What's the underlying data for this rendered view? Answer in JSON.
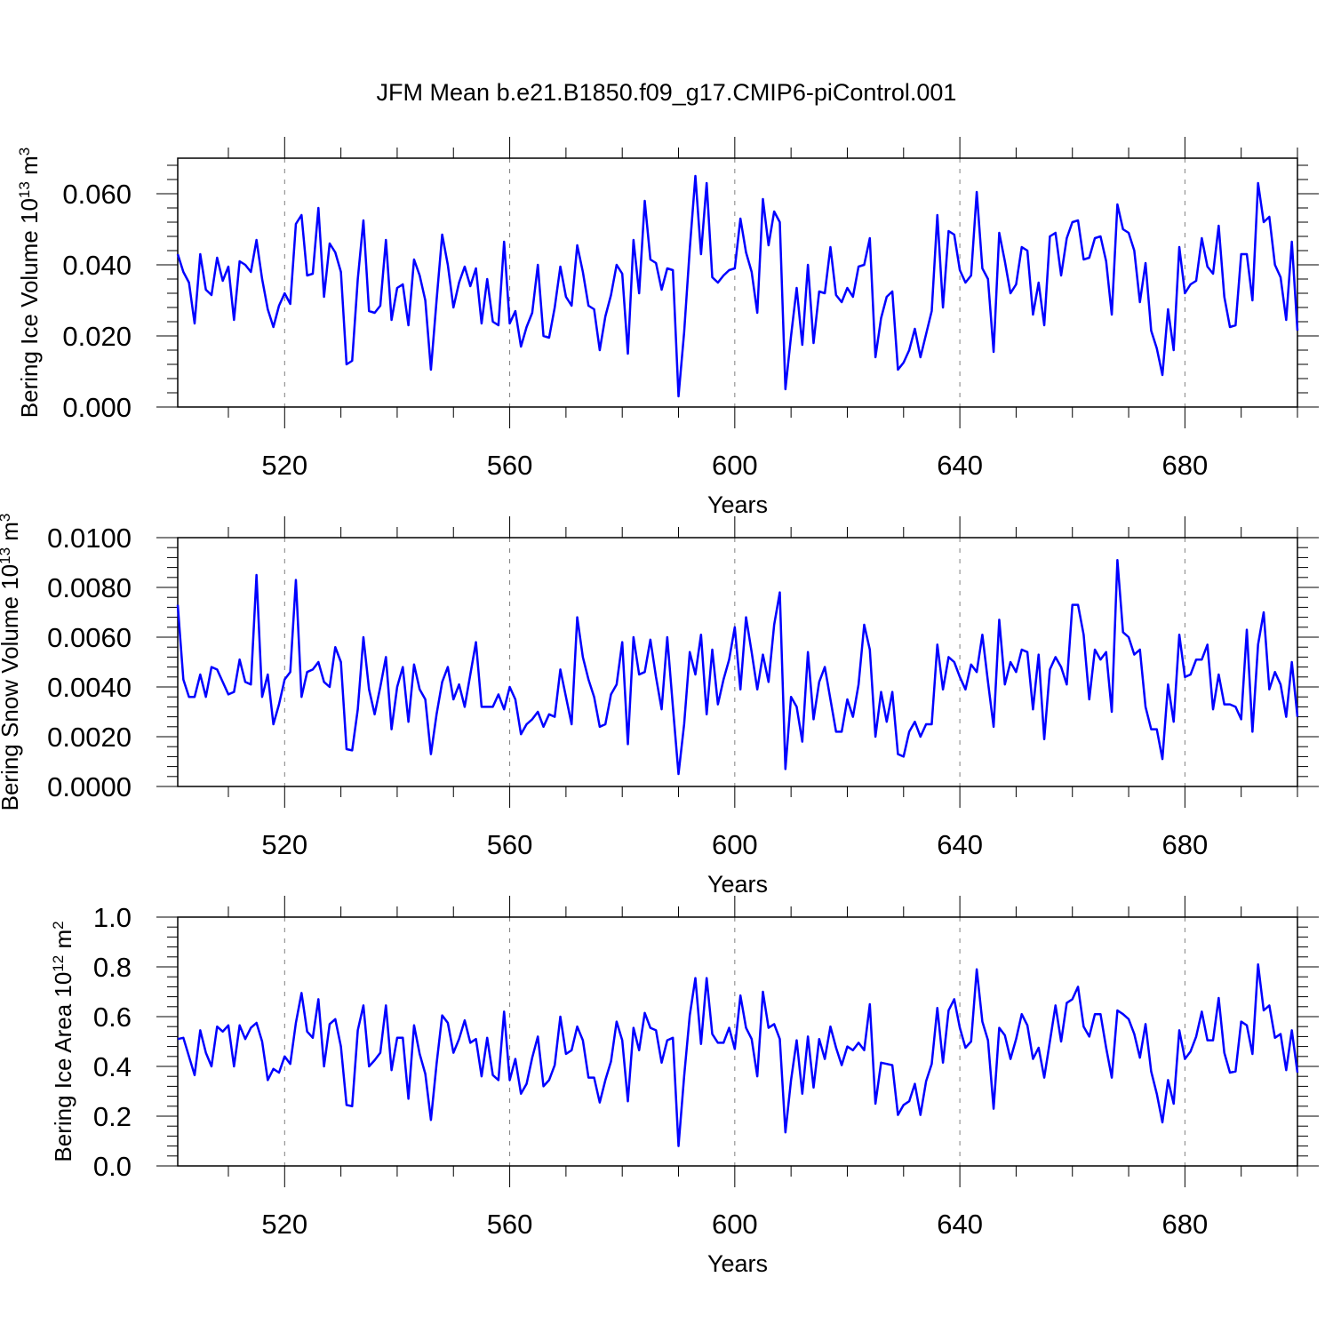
{
  "title": "JFM Mean b.e21.B1850.f09_g17.CMIP6-piControl.001",
  "line_color": "#0000ff",
  "chart_data": [
    {
      "type": "line",
      "title": "",
      "xlabel": "Years",
      "ylabel": "Bering Ice Volume 10",
      "ylabel_exp": "13",
      "ylabel_unit": " m",
      "ylabel_unit_exp": "3",
      "xlim": [
        501,
        700
      ],
      "ylim": [
        0,
        0.07
      ],
      "xticks": [
        "520",
        "560",
        "600",
        "640",
        "680"
      ],
      "yticks": [
        "0.000",
        "0.020",
        "0.040",
        "0.060"
      ],
      "grid": "vertical-dashed",
      "series": [
        {
          "values": [
            0.043,
            0.038,
            0.035,
            0.0235,
            0.043,
            0.033,
            0.0315,
            0.042,
            0.0355,
            0.0395,
            0.0245,
            0.041,
            0.04,
            0.038,
            0.047,
            0.036,
            0.0275,
            0.0225,
            0.0285,
            0.032,
            0.029,
            0.0515,
            0.054,
            0.037,
            0.0375,
            0.056,
            0.031,
            0.046,
            0.0435,
            0.038,
            0.012,
            0.013,
            0.036,
            0.0525,
            0.027,
            0.0265,
            0.0285,
            0.047,
            0.0245,
            0.0335,
            0.0345,
            0.023,
            0.0415,
            0.037,
            0.03,
            0.0105,
            0.03,
            0.0485,
            0.04,
            0.028,
            0.035,
            0.0395,
            0.034,
            0.039,
            0.0235,
            0.036,
            0.024,
            0.023,
            0.0465,
            0.0235,
            0.027,
            0.017,
            0.0225,
            0.0265,
            0.04,
            0.02,
            0.0195,
            0.028,
            0.0395,
            0.031,
            0.0285,
            0.0455,
            0.038,
            0.0285,
            0.0275,
            0.016,
            0.0255,
            0.0315,
            0.04,
            0.0375,
            0.015,
            0.047,
            0.032,
            0.058,
            0.0415,
            0.0405,
            0.033,
            0.039,
            0.0385,
            0.003,
            0.021,
            0.0445,
            0.065,
            0.043,
            0.063,
            0.0365,
            0.035,
            0.037,
            0.0385,
            0.039,
            0.053,
            0.0435,
            0.038,
            0.0265,
            0.0585,
            0.0455,
            0.055,
            0.052,
            0.005,
            0.02,
            0.0335,
            0.0175,
            0.04,
            0.018,
            0.0325,
            0.032,
            0.045,
            0.0315,
            0.0295,
            0.0335,
            0.031,
            0.0395,
            0.04,
            0.0475,
            0.014,
            0.025,
            0.031,
            0.0325,
            0.0105,
            0.0125,
            0.016,
            0.022,
            0.014,
            0.0205,
            0.027,
            0.054,
            0.028,
            0.0495,
            0.0485,
            0.0385,
            0.035,
            0.037,
            0.0605,
            0.039,
            0.036,
            0.0155,
            0.049,
            0.041,
            0.032,
            0.0345,
            0.045,
            0.044,
            0.026,
            0.035,
            0.023,
            0.048,
            0.049,
            0.037,
            0.0475,
            0.052,
            0.0525,
            0.0415,
            0.042,
            0.0475,
            0.048,
            0.041,
            0.026,
            0.057,
            0.05,
            0.049,
            0.044,
            0.0295,
            0.0405,
            0.0215,
            0.0165,
            0.009,
            0.0275,
            0.016,
            0.045,
            0.032,
            0.0345,
            0.0355,
            0.0475,
            0.0395,
            0.0375,
            0.051,
            0.031,
            0.0225,
            0.023,
            0.043,
            0.043,
            0.03,
            0.063,
            0.052,
            0.0535,
            0.04,
            0.0365,
            0.0245,
            0.0465,
            0.0215
          ]
        }
      ]
    },
    {
      "type": "line",
      "title": "",
      "xlabel": "Years",
      "ylabel": "Bering Snow Volume 10",
      "ylabel_exp": "13",
      "ylabel_unit": " m",
      "ylabel_unit_exp": "3",
      "xlim": [
        501,
        700
      ],
      "ylim": [
        0,
        0.01
      ],
      "xticks": [
        "520",
        "560",
        "600",
        "640",
        "680"
      ],
      "yticks": [
        "0.0000",
        "0.0020",
        "0.0040",
        "0.0060",
        "0.0080",
        "0.0100"
      ],
      "grid": "vertical-dashed",
      "series": [
        {
          "values": [
            0.0073,
            0.0043,
            0.0036,
            0.0036,
            0.0045,
            0.0036,
            0.0048,
            0.0047,
            0.0042,
            0.0037,
            0.0038,
            0.0051,
            0.0042,
            0.0041,
            0.0085,
            0.0036,
            0.0045,
            0.0025,
            0.0033,
            0.0043,
            0.0046,
            0.0083,
            0.0036,
            0.0046,
            0.0047,
            0.005,
            0.0042,
            0.004,
            0.0056,
            0.005,
            0.0015,
            0.00145,
            0.0031,
            0.006,
            0.0039,
            0.0029,
            0.004,
            0.0052,
            0.0023,
            0.004,
            0.0048,
            0.0026,
            0.0049,
            0.0039,
            0.0035,
            0.0013,
            0.0029,
            0.0042,
            0.0048,
            0.0035,
            0.0041,
            0.0032,
            0.0045,
            0.0058,
            0.0032,
            0.0032,
            0.0032,
            0.0037,
            0.0031,
            0.004,
            0.0035,
            0.0021,
            0.0025,
            0.0027,
            0.003,
            0.0024,
            0.0029,
            0.0028,
            0.0047,
            0.0036,
            0.0025,
            0.0068,
            0.0052,
            0.0043,
            0.0036,
            0.0024,
            0.0025,
            0.0037,
            0.0041,
            0.0058,
            0.0017,
            0.006,
            0.0045,
            0.0046,
            0.0059,
            0.0044,
            0.0031,
            0.006,
            0.0032,
            0.0005,
            0.0025,
            0.0054,
            0.0045,
            0.0061,
            0.0029,
            0.0055,
            0.0033,
            0.0043,
            0.0051,
            0.0064,
            0.0039,
            0.0068,
            0.0054,
            0.0039,
            0.0053,
            0.0042,
            0.0065,
            0.0078,
            0.0007,
            0.0036,
            0.0032,
            0.0018,
            0.0054,
            0.0027,
            0.0042,
            0.0048,
            0.0035,
            0.0022,
            0.0022,
            0.0035,
            0.0028,
            0.0041,
            0.0065,
            0.0055,
            0.002,
            0.0038,
            0.0026,
            0.0038,
            0.0013,
            0.0012,
            0.0022,
            0.0026,
            0.002,
            0.0025,
            0.0025,
            0.0057,
            0.0039,
            0.0052,
            0.005,
            0.0044,
            0.0039,
            0.0049,
            0.0046,
            0.0061,
            0.0042,
            0.0024,
            0.0067,
            0.0041,
            0.005,
            0.0046,
            0.0055,
            0.0054,
            0.0031,
            0.0053,
            0.0019,
            0.0047,
            0.0052,
            0.0048,
            0.0041,
            0.0073,
            0.0073,
            0.0061,
            0.0035,
            0.0055,
            0.0051,
            0.0054,
            0.003,
            0.0091,
            0.0062,
            0.006,
            0.0053,
            0.0055,
            0.0032,
            0.0023,
            0.0023,
            0.0011,
            0.0041,
            0.0026,
            0.0061,
            0.0044,
            0.0045,
            0.0051,
            0.0051,
            0.0057,
            0.0031,
            0.0045,
            0.0033,
            0.0033,
            0.0032,
            0.0027,
            0.0063,
            0.0022,
            0.0057,
            0.007,
            0.0039,
            0.0046,
            0.0041,
            0.0028,
            0.005,
            0.0028
          ]
        }
      ]
    },
    {
      "type": "line",
      "title": "",
      "xlabel": "Years",
      "ylabel": "Bering Ice Area 10",
      "ylabel_exp": "12",
      "ylabel_unit": " m",
      "ylabel_unit_exp": "2",
      "xlim": [
        501,
        700
      ],
      "ylim": [
        0,
        1.0
      ],
      "xticks": [
        "520",
        "560",
        "600",
        "640",
        "680"
      ],
      "yticks": [
        "0.0",
        "0.2",
        "0.4",
        "0.6",
        "0.8",
        "1.0"
      ],
      "grid": "vertical-dashed",
      "series": [
        {
          "values": [
            0.51,
            0.515,
            0.44,
            0.365,
            0.545,
            0.455,
            0.4,
            0.56,
            0.54,
            0.565,
            0.4,
            0.565,
            0.51,
            0.555,
            0.575,
            0.5,
            0.345,
            0.39,
            0.375,
            0.44,
            0.41,
            0.575,
            0.695,
            0.54,
            0.515,
            0.67,
            0.4,
            0.57,
            0.59,
            0.48,
            0.245,
            0.24,
            0.545,
            0.645,
            0.4,
            0.425,
            0.455,
            0.645,
            0.385,
            0.515,
            0.515,
            0.27,
            0.565,
            0.45,
            0.37,
            0.185,
            0.41,
            0.605,
            0.575,
            0.455,
            0.51,
            0.585,
            0.495,
            0.51,
            0.36,
            0.515,
            0.365,
            0.345,
            0.62,
            0.345,
            0.43,
            0.29,
            0.33,
            0.435,
            0.52,
            0.32,
            0.345,
            0.405,
            0.6,
            0.45,
            0.465,
            0.56,
            0.505,
            0.355,
            0.355,
            0.255,
            0.345,
            0.42,
            0.58,
            0.505,
            0.26,
            0.555,
            0.465,
            0.615,
            0.555,
            0.545,
            0.415,
            0.505,
            0.515,
            0.08,
            0.36,
            0.605,
            0.755,
            0.49,
            0.755,
            0.53,
            0.495,
            0.495,
            0.555,
            0.47,
            0.685,
            0.555,
            0.51,
            0.36,
            0.7,
            0.555,
            0.57,
            0.51,
            0.135,
            0.345,
            0.505,
            0.29,
            0.52,
            0.315,
            0.51,
            0.43,
            0.56,
            0.475,
            0.405,
            0.48,
            0.465,
            0.495,
            0.465,
            0.65,
            0.25,
            0.415,
            0.41,
            0.405,
            0.205,
            0.245,
            0.26,
            0.33,
            0.205,
            0.34,
            0.41,
            0.635,
            0.415,
            0.625,
            0.67,
            0.555,
            0.475,
            0.5,
            0.79,
            0.58,
            0.505,
            0.23,
            0.555,
            0.525,
            0.43,
            0.51,
            0.61,
            0.565,
            0.43,
            0.475,
            0.355,
            0.5,
            0.645,
            0.5,
            0.655,
            0.67,
            0.72,
            0.56,
            0.52,
            0.61,
            0.61,
            0.475,
            0.355,
            0.625,
            0.61,
            0.59,
            0.53,
            0.435,
            0.57,
            0.38,
            0.29,
            0.175,
            0.345,
            0.25,
            0.545,
            0.43,
            0.46,
            0.52,
            0.62,
            0.505,
            0.505,
            0.675,
            0.455,
            0.375,
            0.38,
            0.58,
            0.565,
            0.45,
            0.81,
            0.625,
            0.645,
            0.515,
            0.53,
            0.385,
            0.545,
            0.375
          ]
        }
      ]
    }
  ]
}
